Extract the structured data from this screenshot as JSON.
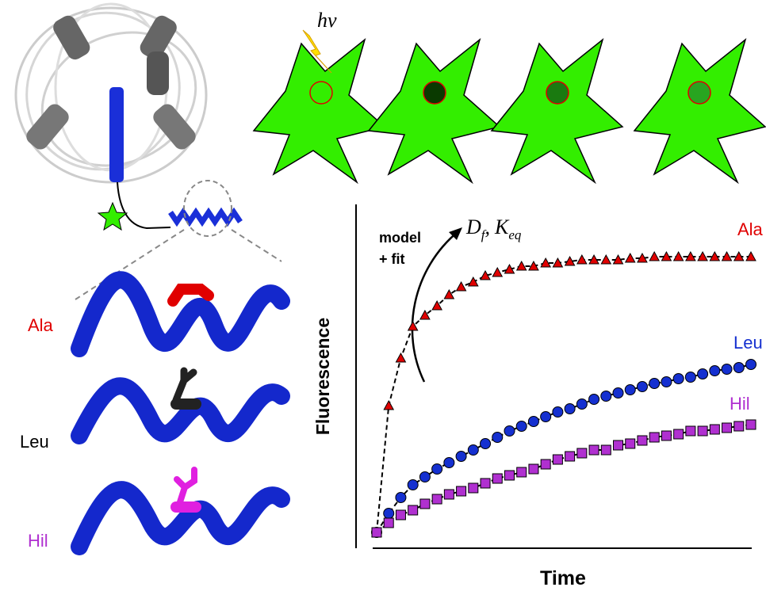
{
  "chart_data": {
    "type": "scatter",
    "x_label": "Time",
    "y_label": "Fluorescence",
    "annotations": {
      "excitation": "hv",
      "model": "model",
      "fit": "+ fit",
      "fit_params": [
        {
          "symbol": "D",
          "subscript": "f"
        },
        {
          "symbol": "K",
          "subscript": "eq"
        }
      ],
      "fit_params_separator": ","
    },
    "x": [
      0,
      1,
      2,
      3,
      4,
      5,
      6,
      7,
      8,
      9,
      10,
      11,
      12,
      13,
      14,
      15,
      16,
      17,
      18,
      19,
      20,
      21,
      22,
      23,
      24,
      25,
      26,
      27,
      28,
      29,
      30,
      31
    ],
    "xlim": [
      0,
      31
    ],
    "ylim": [
      0,
      100
    ],
    "fit_lines": true,
    "series": [
      {
        "name": "Ala",
        "color": "#e00000",
        "marker": "triangle",
        "values": [
          0,
          40,
          55,
          65,
          68.5,
          71.5,
          75,
          77.5,
          79,
          81,
          82,
          83,
          84,
          84,
          85,
          85,
          85.5,
          86,
          86,
          86,
          86,
          86.5,
          86.5,
          87,
          87,
          87,
          87,
          87,
          87,
          87,
          87,
          87
        ]
      },
      {
        "name": "Leu",
        "color": "#1530d0",
        "marker": "circle",
        "values": [
          0,
          6,
          11,
          15,
          17.5,
          20,
          22,
          24,
          26,
          28,
          30,
          32,
          33.5,
          35,
          36.5,
          38,
          39,
          40.5,
          42,
          43,
          44,
          45,
          46,
          47,
          47.5,
          48.5,
          49,
          50,
          51,
          51.5,
          52,
          53
        ]
      },
      {
        "name": "Hil",
        "color": "#b030d0",
        "marker": "square",
        "values": [
          0,
          3,
          5.5,
          7,
          9,
          10.5,
          12,
          13,
          14,
          15.5,
          17,
          18,
          19,
          20,
          21.5,
          23,
          24,
          25,
          26,
          26,
          27.5,
          28,
          29,
          30,
          30.5,
          31,
          32,
          32,
          32.5,
          33,
          33.5,
          34
        ]
      }
    ]
  }
}
